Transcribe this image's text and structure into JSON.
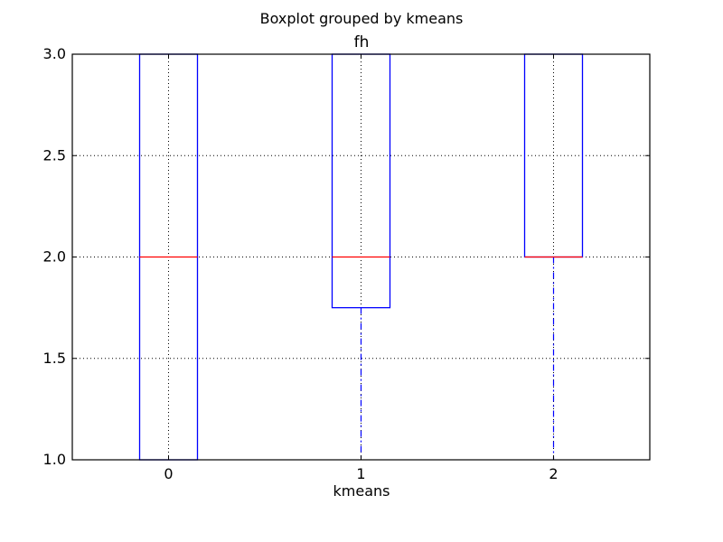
{
  "chart_data": {
    "type": "box",
    "suptitle": "Boxplot grouped by kmeans",
    "title": "fh",
    "xlabel": "kmeans",
    "ylabel": "",
    "categories": [
      "0",
      "1",
      "2"
    ],
    "xlim": [
      0.5,
      3.5
    ],
    "ylim": [
      1.0,
      3.0
    ],
    "yticks": [
      1.0,
      1.5,
      2.0,
      2.5,
      3.0
    ],
    "ytick_labels": [
      "1.0",
      "1.5",
      "2.0",
      "2.5",
      "3.0"
    ],
    "boxes": [
      {
        "category": "0",
        "whisker_low": 1.0,
        "q1": 1.0,
        "median": 2.0,
        "q3": 3.0,
        "whisker_high": 3.0
      },
      {
        "category": "1",
        "whisker_low": 1.0,
        "q1": 1.75,
        "median": 2.0,
        "q3": 3.0,
        "whisker_high": 3.0
      },
      {
        "category": "2",
        "whisker_low": 1.0,
        "q1": 2.0,
        "median": 2.0,
        "q3": 3.0,
        "whisker_high": 3.0
      }
    ],
    "grid": true,
    "colors": {
      "box": "#0000ff",
      "median": "#ff0000",
      "whisker": "#0000ff",
      "grid": "#000000",
      "axes": "#000000"
    }
  }
}
